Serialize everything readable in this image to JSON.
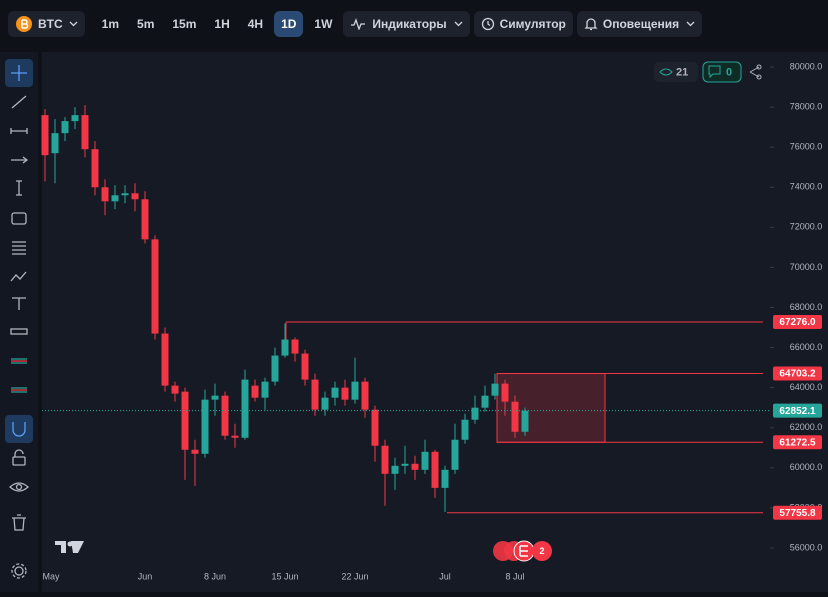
{
  "toolbar": {
    "symbol": "BTC",
    "intervals": [
      "1m",
      "5m",
      "15m",
      "1H",
      "4H",
      "1D",
      "1W"
    ],
    "indicators": "Индикаторы",
    "simulator": "Симулятор",
    "alerts": "Оповещения"
  },
  "badges": {
    "views": 21,
    "comments": 0,
    "events": 2
  },
  "chart_data": {
    "type": "candlestick",
    "categories": [
      "May",
      null,
      null,
      null,
      null,
      null,
      null,
      null,
      null,
      null,
      "Jun",
      null,
      null,
      null,
      null,
      null,
      null,
      "8 Jun",
      null,
      null,
      null,
      null,
      null,
      null,
      "15 Jun",
      null,
      null,
      null,
      null,
      null,
      null,
      "22 Jun",
      null,
      null,
      null,
      null,
      null,
      null,
      null,
      null,
      "Jul",
      null,
      null,
      null,
      null,
      null,
      null,
      "8 Jul",
      null
    ],
    "open": [
      77600,
      75700,
      76700,
      77300,
      77600,
      75900,
      74000,
      73300,
      73600,
      73700,
      73400,
      71400,
      66700,
      64100,
      63800,
      60900,
      60700,
      63400,
      63600,
      61600,
      61500,
      64100,
      63500,
      64300,
      65600,
      66400,
      65700,
      64400,
      62900,
      63500,
      64000,
      63400,
      64300,
      62900,
      61100,
      59700,
      60100,
      60200,
      59900,
      60800,
      59000,
      59900,
      61400,
      62400,
      63000,
      63600,
      64200,
      63300,
      61800
    ],
    "high": [
      77900,
      77400,
      77500,
      78000,
      78100,
      76300,
      74400,
      74100,
      74100,
      74200,
      73800,
      71600,
      67000,
      64300,
      64000,
      61400,
      63900,
      64200,
      63800,
      62200,
      64900,
      64400,
      64500,
      66000,
      67200,
      66500,
      65900,
      64700,
      63800,
      64300,
      64400,
      65500,
      64500,
      63100,
      61400,
      60500,
      61100,
      60600,
      61400,
      60900,
      60100,
      62200,
      62700,
      63600,
      64100,
      64700,
      64400,
      63600,
      63000
    ],
    "low": [
      74300,
      74200,
      76300,
      76900,
      75500,
      73600,
      72600,
      72900,
      73200,
      72800,
      71200,
      66400,
      63800,
      63300,
      59400,
      59100,
      60500,
      62600,
      61400,
      61000,
      61400,
      63300,
      62900,
      64100,
      65500,
      65300,
      64100,
      62600,
      62600,
      63100,
      63100,
      63200,
      62500,
      60300,
      58100,
      58900,
      59700,
      59400,
      59700,
      58500,
      57800,
      59700,
      61200,
      62200,
      62800,
      63400,
      62600,
      61500,
      61600
    ],
    "close": [
      75600,
      76700,
      77300,
      77600,
      75900,
      74000,
      73300,
      73600,
      73700,
      73400,
      71400,
      66700,
      64100,
      63700,
      60900,
      60700,
      63400,
      63600,
      61600,
      61500,
      64400,
      63500,
      64300,
      65600,
      66400,
      65700,
      64400,
      62900,
      63500,
      64000,
      63400,
      64300,
      62900,
      61100,
      59700,
      60100,
      60200,
      59900,
      60800,
      59000,
      59900,
      61400,
      62400,
      63000,
      63600,
      64200,
      63300,
      61800,
      62852.1
    ],
    "up_color": "#26a69a",
    "down_color": "#f23645",
    "ylim": [
      55000,
      80500
    ],
    "yticks": [
      {
        "value": 56000,
        "label": "56000.0"
      },
      {
        "value": 58000,
        "label": "58000.0"
      },
      {
        "value": 60000,
        "label": "60000.0"
      },
      {
        "value": 62000,
        "label": "62000.0"
      },
      {
        "value": 64000,
        "label": "64000.0"
      },
      {
        "value": 66000,
        "label": "66000.0"
      },
      {
        "value": 68000,
        "label": "68000.0"
      },
      {
        "value": 70000,
        "label": "70000.0"
      },
      {
        "value": 72000,
        "label": "72000.0"
      },
      {
        "value": 74000,
        "label": "74000.0"
      },
      {
        "value": 76000,
        "label": "76000.0"
      },
      {
        "value": 78000,
        "label": "78000.0"
      },
      {
        "value": 80000,
        "label": "80000.0"
      }
    ],
    "levels": [
      {
        "value": 67276,
        "label": "67276.0"
      },
      {
        "value": 64703.2,
        "label": "64703.2"
      },
      {
        "value": 61272.5,
        "label": "61272.5"
      },
      {
        "value": 57755.8,
        "label": "57755.8"
      }
    ],
    "level_color": "#f23645"
  }
}
